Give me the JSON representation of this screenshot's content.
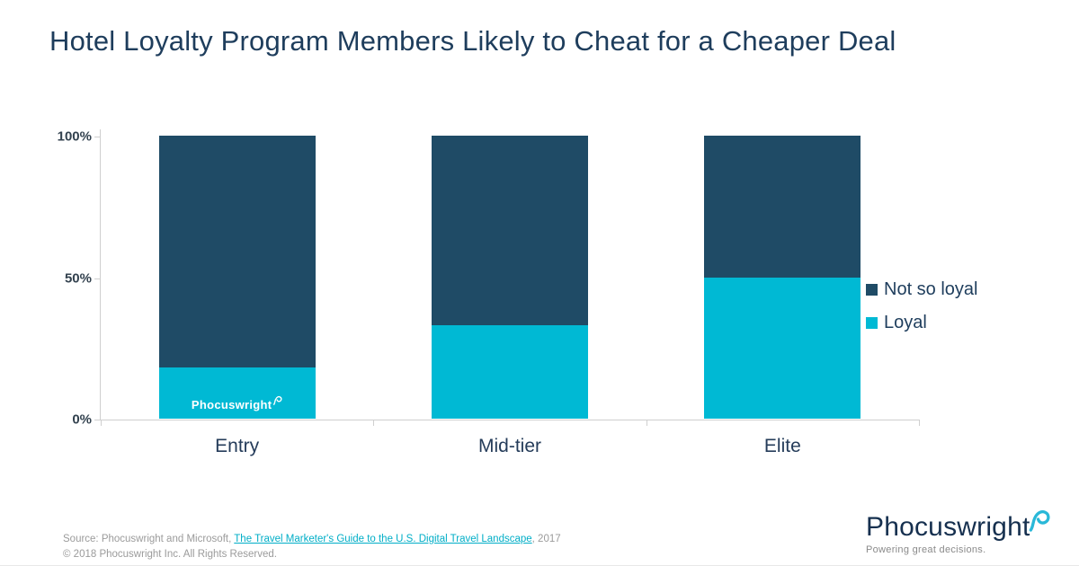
{
  "title": "Hotel Loyalty Program Members Likely to Cheat for a Cheaper Deal",
  "colors": {
    "navy": "#1F4B66",
    "cyan": "#00B9D4",
    "text_navy": "#1E3D5C",
    "axis_gray": "#CFCFCF",
    "footer_gray": "#9B9B9B",
    "link_cyan": "#00AEC7",
    "logo_navy": "#16304F"
  },
  "chart_data": {
    "type": "bar",
    "stacked": true,
    "percent": true,
    "categories": [
      "Entry",
      "Mid-tier",
      "Elite"
    ],
    "series": [
      {
        "name": "Loyal",
        "color_key": "cyan",
        "values": [
          18,
          33,
          50
        ]
      },
      {
        "name": "Not so loyal",
        "color_key": "navy",
        "values": [
          82,
          67,
          50
        ]
      }
    ],
    "legend": [
      "Not so loyal",
      "Loyal"
    ],
    "legend_position": "right",
    "y_ticks": [
      {
        "label": "0%",
        "value": 0
      },
      {
        "label": "50%",
        "value": 50
      },
      {
        "label": "100%",
        "value": 100
      }
    ],
    "ylim": [
      0,
      100
    ],
    "grid": false,
    "title": "Hotel Loyalty Program Members Likely to Cheat for a Cheaper Deal",
    "xlabel": "",
    "ylabel": ""
  },
  "watermark": {
    "text": "Phocuswright"
  },
  "footer": {
    "source_prefix": "Source: Phocuswright and Microsoft, ",
    "source_link": "The Travel Marketer's Guide to the U.S. Digital Travel Landscape",
    "source_suffix": ", 2017",
    "copyright": "© 2018 Phocuswright Inc. All Rights Reserved."
  },
  "logo": {
    "name": "Phocuswright",
    "tagline": "Powering great decisions."
  }
}
